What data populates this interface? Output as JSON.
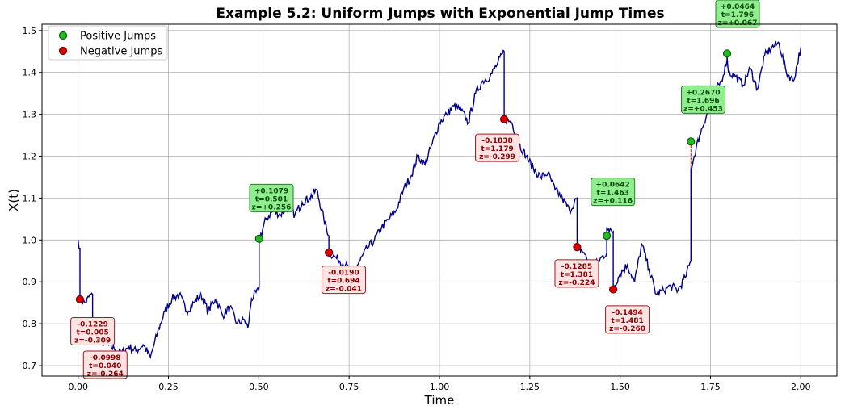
{
  "chart_data": {
    "type": "line",
    "title": "Example 5.2: Uniform Jumps with Exponential Jump Times",
    "xlabel": "Time",
    "ylabel": "X(t)",
    "xlim": [
      -0.1,
      2.1
    ],
    "ylim": [
      0.675,
      1.515
    ],
    "xticks": [
      0.0,
      0.25,
      0.5,
      0.75,
      1.0,
      1.25,
      1.5,
      1.75,
      2.0
    ],
    "xtick_labels": [
      "0.00",
      "0.25",
      "0.50",
      "0.75",
      "1.00",
      "1.25",
      "1.50",
      "1.75",
      "2.00"
    ],
    "yticks": [
      0.7,
      0.8,
      0.9,
      1.0,
      1.1,
      1.2,
      1.3,
      1.4,
      1.5
    ],
    "ytick_labels": [
      "0.7",
      "0.8",
      "0.9",
      "1.0",
      "1.1",
      "1.2",
      "1.3",
      "1.4",
      "1.5"
    ],
    "grid": true,
    "legend": {
      "placement": "top-left",
      "entries": [
        {
          "label": "Positive Jumps",
          "color": "#22bb22"
        },
        {
          "label": "Negative Jumps",
          "color": "#dd0000"
        }
      ]
    },
    "series_color": "#00008b",
    "path_anchors": [
      [
        0.0,
        1.0
      ],
      [
        0.005,
        0.98
      ],
      [
        0.005,
        0.858
      ],
      [
        0.02,
        0.85
      ],
      [
        0.035,
        0.87
      ],
      [
        0.04,
        0.87
      ],
      [
        0.04,
        0.772
      ],
      [
        0.06,
        0.76
      ],
      [
        0.08,
        0.75
      ],
      [
        0.1,
        0.74
      ],
      [
        0.12,
        0.73
      ],
      [
        0.14,
        0.745
      ],
      [
        0.16,
        0.735
      ],
      [
        0.18,
        0.75
      ],
      [
        0.2,
        0.72
      ],
      [
        0.21,
        0.75
      ],
      [
        0.22,
        0.78
      ],
      [
        0.24,
        0.83
      ],
      [
        0.26,
        0.86
      ],
      [
        0.28,
        0.87
      ],
      [
        0.3,
        0.83
      ],
      [
        0.32,
        0.85
      ],
      [
        0.34,
        0.87
      ],
      [
        0.36,
        0.83
      ],
      [
        0.38,
        0.86
      ],
      [
        0.4,
        0.82
      ],
      [
        0.42,
        0.84
      ],
      [
        0.44,
        0.8
      ],
      [
        0.46,
        0.81
      ],
      [
        0.47,
        0.79
      ],
      [
        0.48,
        0.86
      ],
      [
        0.5,
        0.88
      ],
      [
        0.501,
        0.89
      ],
      [
        0.501,
        1.0
      ],
      [
        0.52,
        1.05
      ],
      [
        0.54,
        1.07
      ],
      [
        0.56,
        1.06
      ],
      [
        0.58,
        1.08
      ],
      [
        0.6,
        1.06
      ],
      [
        0.62,
        1.09
      ],
      [
        0.64,
        1.1
      ],
      [
        0.66,
        1.12
      ],
      [
        0.68,
        1.05
      ],
      [
        0.694,
        1.01
      ],
      [
        0.694,
        0.97
      ],
      [
        0.71,
        0.96
      ],
      [
        0.74,
        0.94
      ],
      [
        0.76,
        0.92
      ],
      [
        0.78,
        0.95
      ],
      [
        0.8,
        0.98
      ],
      [
        0.82,
        1.0
      ],
      [
        0.84,
        1.03
      ],
      [
        0.86,
        1.05
      ],
      [
        0.88,
        1.07
      ],
      [
        0.9,
        1.12
      ],
      [
        0.92,
        1.15
      ],
      [
        0.94,
        1.2
      ],
      [
        0.96,
        1.18
      ],
      [
        0.98,
        1.23
      ],
      [
        1.0,
        1.28
      ],
      [
        1.02,
        1.3
      ],
      [
        1.04,
        1.32
      ],
      [
        1.06,
        1.31
      ],
      [
        1.08,
        1.28
      ],
      [
        1.1,
        1.35
      ],
      [
        1.12,
        1.38
      ],
      [
        1.14,
        1.39
      ],
      [
        1.16,
        1.42
      ],
      [
        1.179,
        1.45
      ],
      [
        1.179,
        1.29
      ],
      [
        1.2,
        1.28
      ],
      [
        1.22,
        1.23
      ],
      [
        1.24,
        1.2
      ],
      [
        1.26,
        1.17
      ],
      [
        1.28,
        1.15
      ],
      [
        1.3,
        1.16
      ],
      [
        1.32,
        1.12
      ],
      [
        1.34,
        1.1
      ],
      [
        1.36,
        1.07
      ],
      [
        1.381,
        1.1
      ],
      [
        1.381,
        0.985
      ],
      [
        1.4,
        0.97
      ],
      [
        1.42,
        0.93
      ],
      [
        1.44,
        0.95
      ],
      [
        1.463,
        0.97
      ],
      [
        1.463,
        1.03
      ],
      [
        1.47,
        1.02
      ],
      [
        1.481,
        1.02
      ],
      [
        1.481,
        0.885
      ],
      [
        1.5,
        0.92
      ],
      [
        1.52,
        0.94
      ],
      [
        1.54,
        0.9
      ],
      [
        1.56,
        0.99
      ],
      [
        1.58,
        0.93
      ],
      [
        1.6,
        0.87
      ],
      [
        1.62,
        0.88
      ],
      [
        1.64,
        0.89
      ],
      [
        1.66,
        0.88
      ],
      [
        1.68,
        0.91
      ],
      [
        1.696,
        0.95
      ],
      [
        1.696,
        1.17
      ],
      [
        1.72,
        1.25
      ],
      [
        1.74,
        1.3
      ],
      [
        1.76,
        1.35
      ],
      [
        1.78,
        1.38
      ],
      [
        1.796,
        1.43
      ],
      [
        1.796,
        1.44
      ],
      [
        1.8,
        1.4
      ],
      [
        1.82,
        1.39
      ],
      [
        1.84,
        1.37
      ],
      [
        1.86,
        1.41
      ],
      [
        1.88,
        1.36
      ],
      [
        1.9,
        1.44
      ],
      [
        1.92,
        1.46
      ],
      [
        1.94,
        1.47
      ],
      [
        1.96,
        1.4
      ],
      [
        1.98,
        1.38
      ],
      [
        2.0,
        1.46
      ]
    ],
    "jumps": [
      {
        "sign": "negative",
        "t": 0.005,
        "y_marker": 0.858,
        "y_pre": 0.98,
        "label": [
          "-0.1229",
          "t=0.005",
          "z=-0.309"
        ],
        "label_xy": [
          0.04,
          0.782
        ]
      },
      {
        "sign": "negative",
        "t": 0.04,
        "y_marker": 0.782,
        "y_pre": 0.87,
        "label": [
          "-0.0998",
          "t=0.040",
          "z=-0.264"
        ],
        "label_xy": [
          0.075,
          0.702
        ]
      },
      {
        "sign": "positive",
        "t": 0.501,
        "y_marker": 1.003,
        "y_pre": 0.89,
        "label": [
          "+0.1079",
          "t=0.501",
          "z=+0.256"
        ],
        "label_xy": [
          0.535,
          1.1
        ]
      },
      {
        "sign": "negative",
        "t": 0.694,
        "y_marker": 0.97,
        "y_pre": 1.01,
        "label": [
          "-0.0190",
          "t=0.694",
          "z=-0.041"
        ],
        "label_xy": [
          0.735,
          0.905
        ]
      },
      {
        "sign": "negative",
        "t": 1.179,
        "y_marker": 1.288,
        "y_pre": 1.45,
        "label": [
          "-0.1838",
          "t=1.179",
          "z=-0.299"
        ],
        "label_xy": [
          1.16,
          1.22
        ]
      },
      {
        "sign": "negative",
        "t": 1.381,
        "y_marker": 0.983,
        "y_pre": 1.1,
        "label": [
          "-0.1285",
          "t=1.381",
          "z=-0.224"
        ],
        "label_xy": [
          1.38,
          0.92
        ]
      },
      {
        "sign": "positive",
        "t": 1.463,
        "y_marker": 1.01,
        "y_pre": 0.97,
        "label": [
          "+0.0642",
          "t=1.463",
          "z=+0.116"
        ],
        "label_xy": [
          1.48,
          1.115
        ]
      },
      {
        "sign": "negative",
        "t": 1.481,
        "y_marker": 0.882,
        "y_pre": 1.02,
        "label": [
          "-0.1494",
          "t=1.481",
          "z=-0.260"
        ],
        "label_xy": [
          1.52,
          0.81
        ]
      },
      {
        "sign": "positive",
        "t": 1.696,
        "y_marker": 1.235,
        "y_pre": 0.95,
        "label": [
          "+0.2670",
          "t=1.696",
          "z=+0.453"
        ],
        "label_xy": [
          1.73,
          1.335
        ]
      },
      {
        "sign": "positive",
        "t": 1.796,
        "y_marker": 1.445,
        "y_pre": 1.43,
        "label": [
          "+0.0464",
          "t=1.796",
          "z=+0.067"
        ],
        "label_xy": [
          1.825,
          1.54
        ]
      }
    ]
  }
}
